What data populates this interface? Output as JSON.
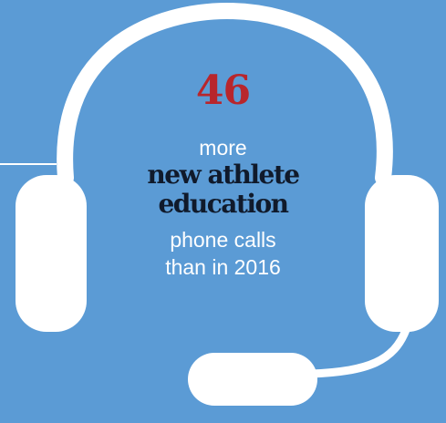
{
  "infographic": {
    "stat_value": "46",
    "lead_text": "more",
    "emphasis_lines": [
      "new athlete",
      "education"
    ],
    "tail_lines": [
      "phone calls",
      "than in 2016"
    ]
  },
  "colors": {
    "background": "#5b9bd5",
    "headset": "#ffffff",
    "stat": "#b8262c",
    "emphasis_text": "#101a2b",
    "body_text": "#ffffff"
  },
  "icons": [
    "headset-icon"
  ]
}
